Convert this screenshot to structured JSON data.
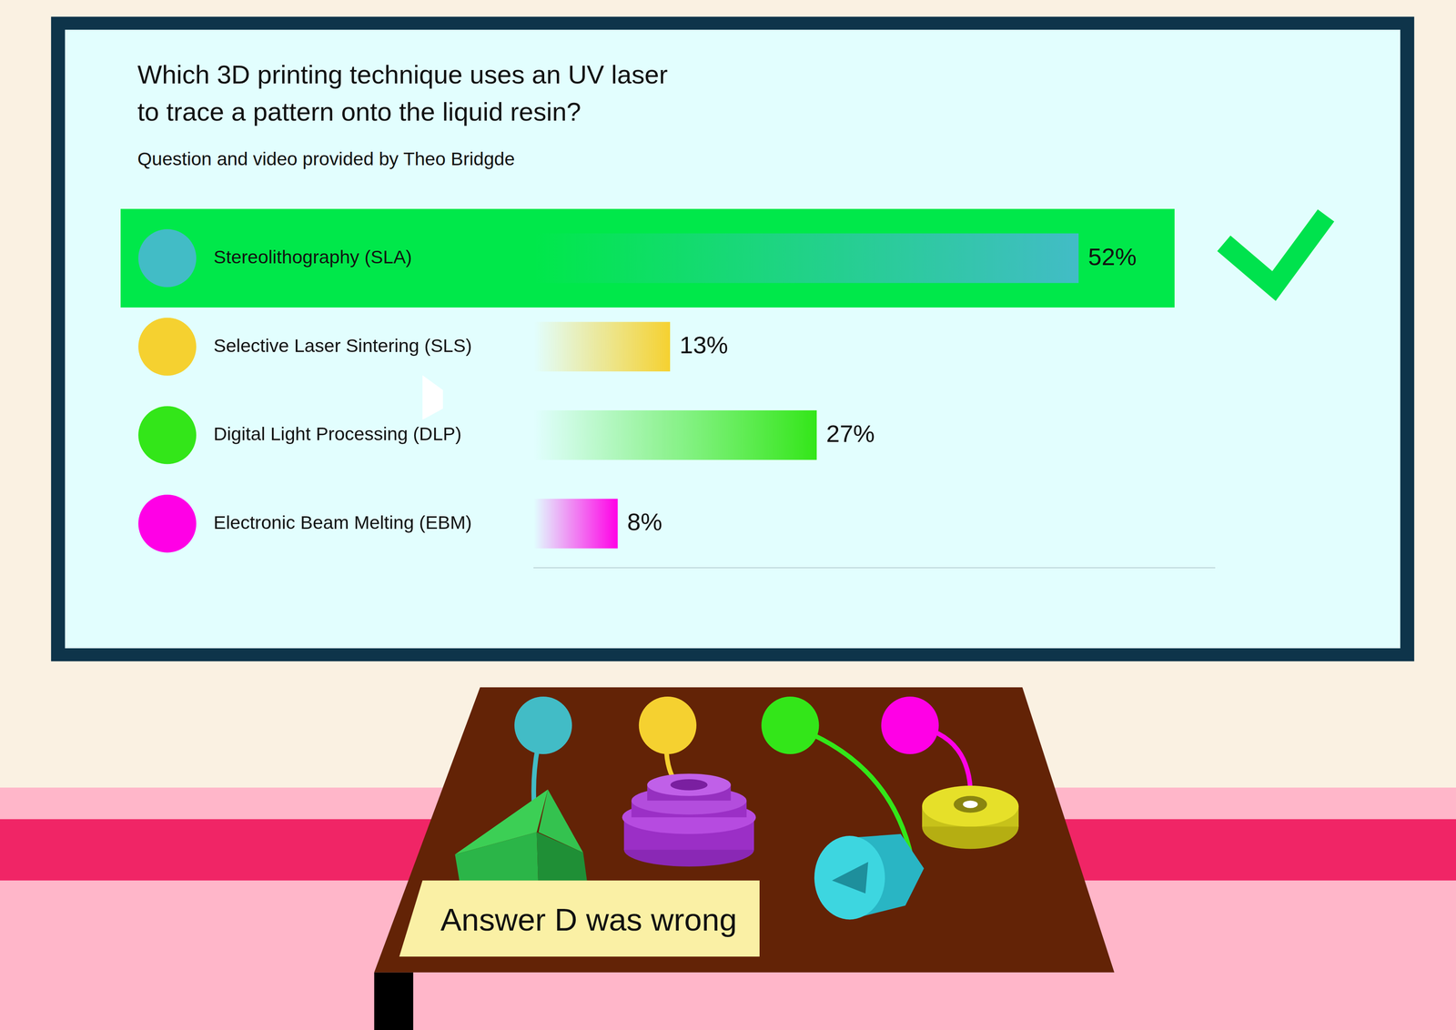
{
  "chart_data": {
    "type": "bar",
    "orientation": "horizontal",
    "title": "Which 3D printing technique uses an UV laser\nto trace a pattern onto the liquid resin?",
    "subtitle": "Question and video provided by Theo Bridgde",
    "categories": [
      "Stereolithography (SLA)",
      "Selective Laser Sintering (SLS)",
      "Digital Light Processing (DLP)",
      "Electronic Beam Melting (EBM)"
    ],
    "values": [
      52,
      13,
      27,
      8
    ],
    "value_labels": [
      "52%",
      "13%",
      "27%",
      "8%"
    ],
    "colors": [
      "#42bcc6",
      "#f5d130",
      "#33e619",
      "#ff00e6"
    ],
    "data_labels": true,
    "tick_labels": "y",
    "grid": false,
    "xlim": [
      0,
      65
    ],
    "annotations": [
      "Answer D was wrong"
    ]
  }
}
